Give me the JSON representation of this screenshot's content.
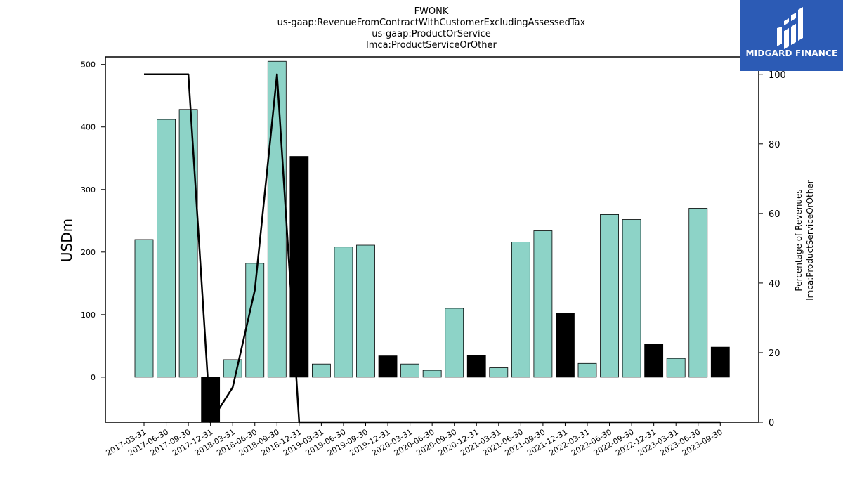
{
  "chart_data": {
    "type": "bar",
    "title_lines": [
      "FWONK",
      "us-gaap:RevenueFromContractWithCustomerExcludingAssessedTax",
      "us-gaap:ProductOrService",
      "lmca:ProductServiceOrOther"
    ],
    "ylabel": "USDm",
    "y2label_lines": [
      "Percentage of Revenues",
      "lmca:ProductServiceOrOther"
    ],
    "ylim": [
      -72,
      512
    ],
    "y2lim": [
      0,
      105
    ],
    "yticks": [
      0,
      100,
      200,
      300,
      400,
      500
    ],
    "y2ticks": [
      0,
      20,
      40,
      60,
      80,
      100
    ],
    "categories": [
      "2017-03-31",
      "2017-06-30",
      "2017-09-30",
      "2017-12-31",
      "2018-03-31",
      "2018-06-30",
      "2018-09-30",
      "2018-12-31",
      "2019-03-31",
      "2019-06-30",
      "2019-09-30",
      "2019-12-31",
      "2020-03-31",
      "2020-06-30",
      "2020-09-30",
      "2020-12-31",
      "2021-03-31",
      "2021-06-30",
      "2021-09-30",
      "2021-12-31",
      "2022-03-31",
      "2022-06-30",
      "2022-09-30",
      "2022-12-31",
      "2023-03-31",
      "2023-06-30",
      "2023-09-30"
    ],
    "series": [
      {
        "values": [
          220,
          412,
          428,
          -72,
          28,
          182,
          505,
          353,
          21,
          208,
          211,
          34,
          21,
          11,
          110,
          35,
          15,
          216,
          234,
          102,
          22,
          260,
          252,
          53,
          30,
          270,
          48
        ],
        "bar_colors": [
          "#8dd3c7",
          "#8dd3c7",
          "#8dd3c7",
          "#000000",
          "#8dd3c7",
          "#8dd3c7",
          "#8dd3c7",
          "#000000",
          "#8dd3c7",
          "#8dd3c7",
          "#8dd3c7",
          "#000000",
          "#8dd3c7",
          "#8dd3c7",
          "#8dd3c7",
          "#000000",
          "#8dd3c7",
          "#8dd3c7",
          "#8dd3c7",
          "#000000",
          "#8dd3c7",
          "#8dd3c7",
          "#8dd3c7",
          "#000000",
          "#8dd3c7",
          "#8dd3c7",
          "#000000"
        ]
      },
      {
        "type": "line",
        "axis": "right",
        "values": [
          100,
          100,
          100,
          0,
          10,
          38,
          100,
          0,
          0,
          0,
          0,
          0,
          0,
          0,
          0,
          0,
          0,
          0,
          0,
          0,
          0,
          0,
          0,
          0,
          0,
          0,
          0
        ]
      }
    ],
    "colors": {
      "bar": "#8dd3c7",
      "bar_q4": "#000000",
      "line": "#000000"
    },
    "legend": "none",
    "grid": false
  },
  "logo": {
    "text": "MIDGARD FINANCE",
    "icon": "midgard-logo-icon",
    "color": "#2c5bb5"
  }
}
